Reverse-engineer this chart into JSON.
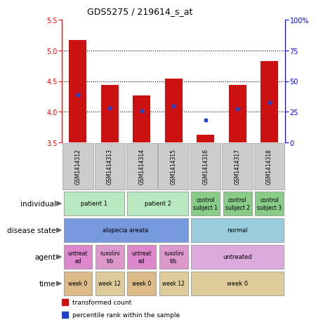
{
  "title": "GDS5275 / 219614_s_at",
  "samples": [
    "GSM1414312",
    "GSM1414313",
    "GSM1414314",
    "GSM1414315",
    "GSM1414316",
    "GSM1414317",
    "GSM1414318"
  ],
  "bar_values": [
    5.17,
    4.44,
    4.27,
    4.54,
    3.63,
    4.44,
    4.82
  ],
  "bar_bottom": 3.5,
  "percentile_values": [
    4.28,
    4.06,
    4.01,
    4.09,
    3.87,
    4.05,
    4.15
  ],
  "ylim": [
    3.5,
    5.5
  ],
  "ylim_right": [
    0,
    100
  ],
  "yticks_left": [
    3.5,
    4.0,
    4.5,
    5.0,
    5.5
  ],
  "yticks_right": [
    0,
    25,
    50,
    75,
    100
  ],
  "bar_color": "#cc1111",
  "dot_color": "#2244cc",
  "annotation_rows": [
    {
      "label": "individual",
      "cells": [
        {
          "text": "patient 1",
          "span": 2,
          "color": "#b8e8c0"
        },
        {
          "text": "patient 2",
          "span": 2,
          "color": "#b8e8c0"
        },
        {
          "text": "control\nsubject 1",
          "span": 1,
          "color": "#88cc88"
        },
        {
          "text": "control\nsubject 2",
          "span": 1,
          "color": "#88cc88"
        },
        {
          "text": "control\nsubject 3",
          "span": 1,
          "color": "#88cc88"
        }
      ]
    },
    {
      "label": "disease state",
      "cells": [
        {
          "text": "alopecia areata",
          "span": 4,
          "color": "#7799dd"
        },
        {
          "text": "normal",
          "span": 3,
          "color": "#99ccdd"
        }
      ]
    },
    {
      "label": "agent",
      "cells": [
        {
          "text": "untreat\ned",
          "span": 1,
          "color": "#dd88cc"
        },
        {
          "text": "ruxolini\ntib",
          "span": 1,
          "color": "#dd99cc"
        },
        {
          "text": "untreat\ned",
          "span": 1,
          "color": "#dd88cc"
        },
        {
          "text": "ruxolini\ntib",
          "span": 1,
          "color": "#dd99cc"
        },
        {
          "text": "untreated",
          "span": 3,
          "color": "#ddaadd"
        }
      ]
    },
    {
      "label": "time",
      "cells": [
        {
          "text": "week 0",
          "span": 1,
          "color": "#ddbb88"
        },
        {
          "text": "week 12",
          "span": 1,
          "color": "#ddcc99"
        },
        {
          "text": "week 0",
          "span": 1,
          "color": "#ddbb88"
        },
        {
          "text": "week 12",
          "span": 1,
          "color": "#ddcc99"
        },
        {
          "text": "week 0",
          "span": 3,
          "color": "#ddcc99"
        }
      ]
    }
  ],
  "legend_items": [
    {
      "color": "#cc1111",
      "label": "transformed count"
    },
    {
      "color": "#2244cc",
      "label": "percentile rank within the sample"
    }
  ]
}
